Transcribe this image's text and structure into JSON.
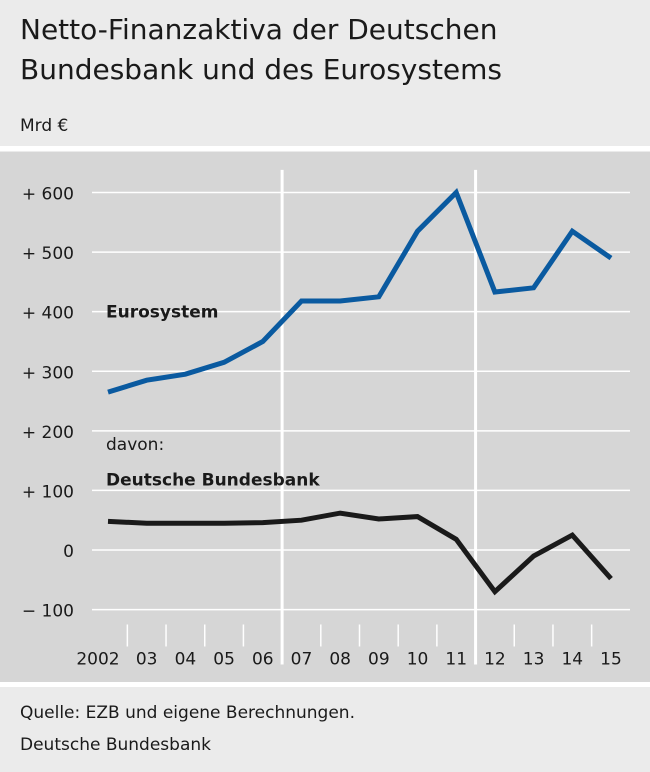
{
  "title": "Netto-Finanzaktiva der Deutschen Bundesbank und des Eurosystems",
  "unit": "Mrd €",
  "source": "Quelle: EZB und eigene Berechnungen.",
  "publisher": "Deutsche Bundesbank",
  "chart_data": {
    "type": "line",
    "title": "Netto-Finanzaktiva der Deutschen Bundesbank und des Eurosystems",
    "ylabel": "Mrd €",
    "xlabel": "",
    "ylim": [
      -125,
      628
    ],
    "yticks": [
      600,
      500,
      400,
      300,
      200,
      100,
      0,
      -100
    ],
    "ytick_labels": [
      "+ 600",
      "+ 500",
      "+ 400",
      "+ 300",
      "+ 200",
      "+ 100",
      "0",
      "− 100"
    ],
    "categories": [
      "2002",
      "03",
      "04",
      "05",
      "06",
      "07",
      "08",
      "09",
      "10",
      "11",
      "12",
      "13",
      "14",
      "15"
    ],
    "highlight_dividers_between": [
      [
        "06",
        "07"
      ],
      [
        "11",
        "12"
      ]
    ],
    "grid": true,
    "series": [
      {
        "name": "Eurosystem",
        "color": "#0a5aa0",
        "values": [
          265,
          285,
          295,
          315,
          350,
          418,
          418,
          425,
          535,
          600,
          433,
          440,
          535,
          490
        ]
      },
      {
        "name": "Deutsche Bundesbank",
        "name_prefix": "davon:",
        "color": "#1a1a1a",
        "values": [
          48,
          45,
          45,
          45,
          46,
          50,
          62,
          52,
          56,
          18,
          -70,
          -10,
          25,
          -48
        ]
      }
    ]
  }
}
